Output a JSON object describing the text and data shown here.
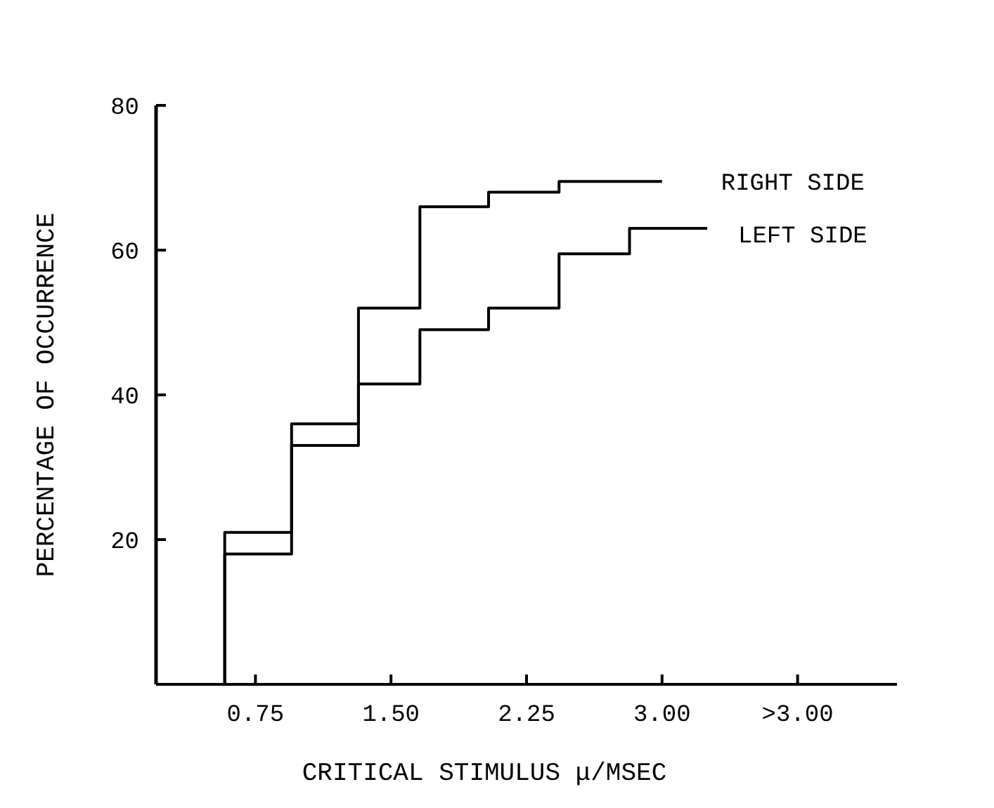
{
  "chart_data": {
    "type": "step",
    "xlabel": "CRITICAL STIMULUS μ/MSEC",
    "ylabel": "PERCENTAGE OF OCCURRENCE",
    "xlim": [
      0.2,
      4.3
    ],
    "xticks": [
      {
        "value": 0.75,
        "label": "0.75"
      },
      {
        "value": 1.5,
        "label": "1.50"
      },
      {
        "value": 2.25,
        "label": "2.25"
      },
      {
        "value": 3,
        "label": "3.00"
      },
      {
        "value": 3.75,
        "label": ">3.00"
      }
    ],
    "ylim": [
      0,
      80
    ],
    "yticks": [
      {
        "value": 20,
        "label": "20"
      },
      {
        "value": 40,
        "label": "40"
      },
      {
        "value": 60,
        "label": "60"
      },
      {
        "value": 80,
        "label": "80"
      }
    ],
    "series": [
      {
        "name": "RIGHT SIDE",
        "color": "#000000",
        "x": [
          0.58,
          0.58,
          0.95,
          1.32,
          1.66,
          2.04,
          2.43,
          3.0
        ],
        "values": [
          0,
          21,
          36,
          52,
          66,
          68,
          69.5,
          69.5
        ]
      },
      {
        "name": "LEFT SIDE",
        "color": "#000000",
        "x": [
          0.58,
          0.58,
          0.95,
          1.32,
          1.66,
          2.04,
          2.43,
          2.82,
          3.25
        ],
        "values": [
          0,
          18,
          33,
          41.5,
          49,
          52,
          59.5,
          63,
          63
        ]
      }
    ],
    "grid": false,
    "legend": false
  }
}
